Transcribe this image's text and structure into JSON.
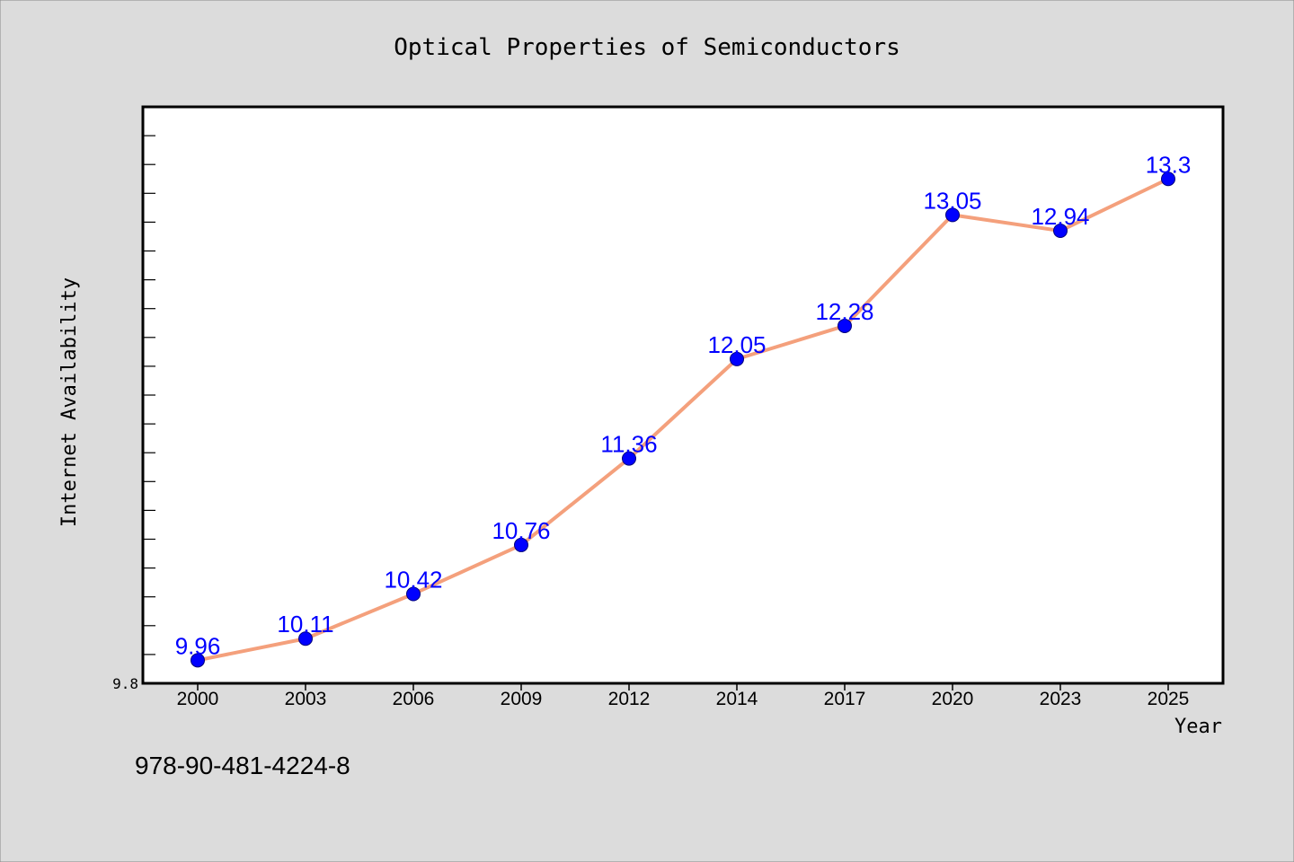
{
  "page": {
    "isbn": "978-90-481-4224-8"
  },
  "colors": {
    "background": "#dcdcdc",
    "plot_background": "#ffffff",
    "line": "#f4a07c",
    "marker": "#0000ff",
    "data_label": "#0000ff"
  },
  "chart_data": {
    "type": "line",
    "title": "Optical Properties of Semiconductors",
    "xlabel": "Year",
    "ylabel": "Internet Availability",
    "categories": [
      "2000",
      "2003",
      "2006",
      "2009",
      "2012",
      "2014",
      "2017",
      "2020",
      "2023",
      "2025"
    ],
    "values": [
      9.96,
      10.11,
      10.42,
      10.76,
      11.36,
      12.05,
      12.28,
      13.05,
      12.94,
      13.3
    ],
    "data_labels": [
      "9.96",
      "10.11",
      "10.42",
      "10.76",
      "11.36",
      "12.05",
      "12.28",
      "13.05",
      "12.94",
      "13.3"
    ],
    "ylim": [
      9.8,
      13.8
    ],
    "ytick_labels": [
      {
        "value": 9.8,
        "label": "9.8"
      }
    ],
    "y_minor_tick_step": 0.2,
    "grid": false,
    "legend": "none"
  }
}
